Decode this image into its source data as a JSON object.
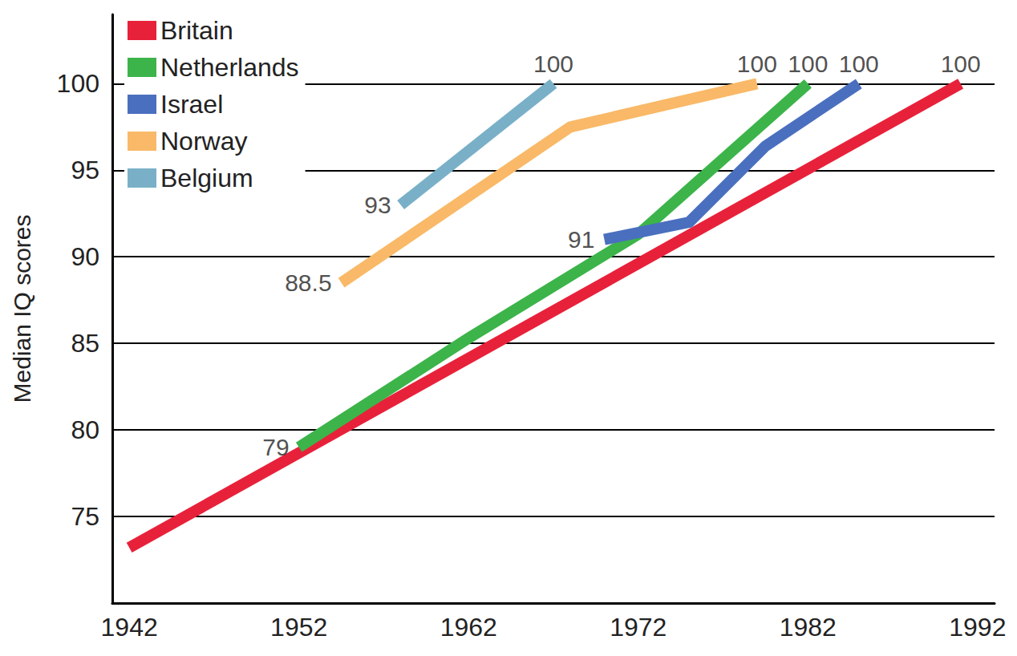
{
  "chart_data": {
    "type": "line",
    "y_label": "Median IQ scores",
    "xlim": [
      1941,
      1993
    ],
    "xticks": [
      1942,
      1952,
      1962,
      1972,
      1982,
      1992
    ],
    "ylim": [
      70,
      104
    ],
    "yticks": [
      75,
      80,
      85,
      90,
      95,
      100
    ],
    "grid": true,
    "legend": "upper left",
    "series": [
      {
        "name": "Britain",
        "color": "#e8213a",
        "x": [
          1942,
          1991
        ],
        "values": [
          73.2,
          100
        ]
      },
      {
        "name": "Netherlands",
        "color": "#3cb44a",
        "x": [
          1952,
          1962,
          1972,
          1982
        ],
        "values": [
          79,
          85.3,
          91.3,
          100
        ]
      },
      {
        "name": "Israel",
        "color": "#4a6fbf",
        "x": [
          1970,
          1975,
          1979.5,
          1985
        ],
        "values": [
          91,
          92,
          96.4,
          100
        ]
      },
      {
        "name": "Norway",
        "color": "#f9b968",
        "x": [
          1954.5,
          1968,
          1979
        ],
        "values": [
          88.5,
          97.5,
          100
        ]
      },
      {
        "name": "Belgium",
        "color": "#79b0c8",
        "x": [
          1958,
          1967
        ],
        "values": [
          93,
          100
        ]
      }
    ],
    "annotations": [
      {
        "text": "100",
        "x": 1967,
        "y": 100
      },
      {
        "text": "100",
        "x": 1979,
        "y": 100
      },
      {
        "text": "100",
        "x": 1982,
        "y": 100
      },
      {
        "text": "100",
        "x": 1985,
        "y": 100
      },
      {
        "text": "100",
        "x": 1991,
        "y": 100
      },
      {
        "text": "93",
        "x": 1958,
        "y": 93
      },
      {
        "text": "88.5",
        "x": 1954.5,
        "y": 88.5
      },
      {
        "text": "79",
        "x": 1952,
        "y": 79
      },
      {
        "text": "91",
        "x": 1970,
        "y": 91
      }
    ]
  }
}
